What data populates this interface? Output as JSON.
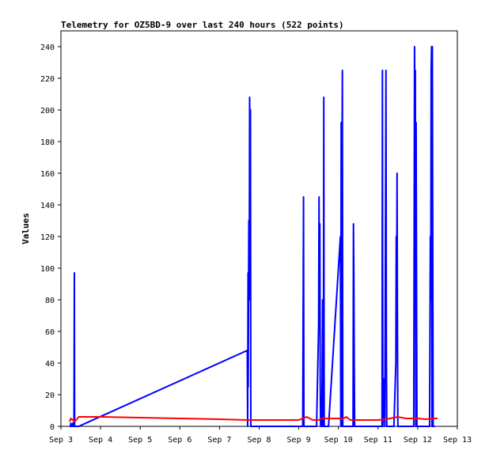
{
  "chart_data": {
    "type": "line",
    "title": "Telemetry for OZ5BD-9 over last 240 hours (522 points)",
    "xlabel": "",
    "ylabel": "Values",
    "ylim": [
      0,
      250
    ],
    "xlim": [
      3.0,
      13.0
    ],
    "grid": false,
    "x_ticks": [
      {
        "v": 3,
        "label": "Sep 3"
      },
      {
        "v": 4,
        "label": "Sep 4"
      },
      {
        "v": 5,
        "label": "Sep 5"
      },
      {
        "v": 6,
        "label": "Sep 6"
      },
      {
        "v": 7,
        "label": "Sep 7"
      },
      {
        "v": 8,
        "label": "Sep 8"
      },
      {
        "v": 9,
        "label": "Sep 9"
      },
      {
        "v": 10,
        "label": "Sep 10"
      },
      {
        "v": 11,
        "label": "Sep 11"
      },
      {
        "v": 12,
        "label": "Sep 12"
      },
      {
        "v": 13,
        "label": "Sep 13"
      }
    ],
    "y_ticks": [
      0,
      20,
      40,
      60,
      80,
      100,
      120,
      140,
      160,
      180,
      200,
      220,
      240
    ],
    "series": [
      {
        "color": "#0000ff",
        "points": [
          [
            3.22,
            0
          ],
          [
            3.24,
            0
          ],
          [
            3.25,
            2
          ],
          [
            3.26,
            0
          ],
          [
            3.28,
            0
          ],
          [
            3.3,
            2
          ],
          [
            3.31,
            0
          ],
          [
            3.33,
            0
          ],
          [
            3.34,
            97
          ],
          [
            3.345,
            0
          ],
          [
            3.4,
            0
          ],
          [
            3.45,
            0
          ],
          [
            7.7,
            48
          ],
          [
            7.71,
            0
          ],
          [
            7.72,
            97
          ],
          [
            7.725,
            25
          ],
          [
            7.74,
            130
          ],
          [
            7.75,
            80
          ],
          [
            7.76,
            208
          ],
          [
            7.77,
            180
          ],
          [
            7.78,
            200
          ],
          [
            7.79,
            0
          ],
          [
            8.8,
            0
          ],
          [
            9.1,
            0
          ],
          [
            9.12,
            145
          ],
          [
            9.13,
            0
          ],
          [
            9.45,
            0
          ],
          [
            9.5,
            65
          ],
          [
            9.51,
            145
          ],
          [
            9.52,
            70
          ],
          [
            9.53,
            128
          ],
          [
            9.54,
            30
          ],
          [
            9.55,
            0
          ],
          [
            9.58,
            0
          ],
          [
            9.6,
            80
          ],
          [
            9.61,
            0
          ],
          [
            9.62,
            0
          ],
          [
            9.63,
            208
          ],
          [
            9.64,
            0
          ],
          [
            9.75,
            0
          ],
          [
            10.05,
            120
          ],
          [
            10.06,
            0
          ],
          [
            10.07,
            192
          ],
          [
            10.08,
            0
          ],
          [
            10.09,
            160
          ],
          [
            10.1,
            225
          ],
          [
            10.11,
            0
          ],
          [
            10.12,
            0
          ],
          [
            10.3,
            0
          ],
          [
            10.37,
            0
          ],
          [
            10.38,
            128
          ],
          [
            10.39,
            95
          ],
          [
            10.4,
            40
          ],
          [
            10.41,
            0
          ],
          [
            10.45,
            0
          ],
          [
            10.7,
            0
          ],
          [
            11.0,
            0
          ],
          [
            11.1,
            0
          ],
          [
            11.11,
            225
          ],
          [
            11.12,
            0
          ],
          [
            11.15,
            30
          ],
          [
            11.17,
            0
          ],
          [
            11.2,
            225
          ],
          [
            11.21,
            48
          ],
          [
            11.22,
            0
          ],
          [
            11.3,
            0
          ],
          [
            11.4,
            0
          ],
          [
            11.45,
            40
          ],
          [
            11.46,
            120
          ],
          [
            11.47,
            80
          ],
          [
            11.48,
            160
          ],
          [
            11.49,
            60
          ],
          [
            11.5,
            0
          ],
          [
            11.7,
            0
          ],
          [
            11.85,
            0
          ],
          [
            11.9,
            0
          ],
          [
            11.92,
            240
          ],
          [
            11.93,
            200
          ],
          [
            11.94,
            225
          ],
          [
            11.95,
            0
          ],
          [
            11.96,
            192
          ],
          [
            11.97,
            95
          ],
          [
            11.98,
            0
          ],
          [
            12.0,
            0
          ],
          [
            12.2,
            0
          ],
          [
            12.3,
            0
          ],
          [
            12.32,
            120
          ],
          [
            12.33,
            80
          ],
          [
            12.34,
            225
          ],
          [
            12.35,
            240
          ],
          [
            12.36,
            0
          ],
          [
            12.37,
            240
          ],
          [
            12.38,
            120
          ],
          [
            12.39,
            0
          ],
          [
            12.43,
            0
          ]
        ]
      },
      {
        "color": "#ff0000",
        "points": [
          [
            3.22,
            3
          ],
          [
            3.25,
            5
          ],
          [
            3.3,
            4
          ],
          [
            3.35,
            3
          ],
          [
            3.45,
            6
          ],
          [
            4.0,
            6
          ],
          [
            5.0,
            5.5
          ],
          [
            6.0,
            5
          ],
          [
            7.0,
            4.5
          ],
          [
            7.7,
            4
          ],
          [
            8.0,
            4
          ],
          [
            9.0,
            4
          ],
          [
            9.2,
            6
          ],
          [
            9.35,
            4
          ],
          [
            9.5,
            4
          ],
          [
            9.6,
            5
          ],
          [
            9.8,
            5
          ],
          [
            10.0,
            5
          ],
          [
            10.1,
            4.5
          ],
          [
            10.2,
            6
          ],
          [
            10.3,
            4
          ],
          [
            10.4,
            4
          ],
          [
            11.0,
            4
          ],
          [
            11.2,
            4.5
          ],
          [
            11.3,
            5
          ],
          [
            11.5,
            6
          ],
          [
            11.7,
            5
          ],
          [
            12.0,
            5
          ],
          [
            12.2,
            4.5
          ],
          [
            12.4,
            5
          ],
          [
            12.5,
            5
          ]
        ]
      }
    ]
  }
}
